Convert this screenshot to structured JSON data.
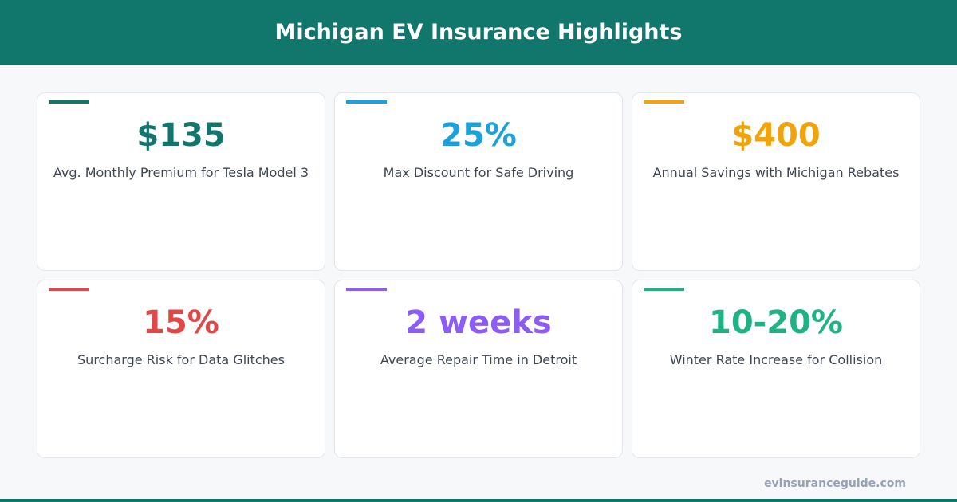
{
  "header": {
    "title": "Michigan EV Insurance Highlights"
  },
  "cards": [
    {
      "value": "$135",
      "label": "Avg. Monthly Premium for Tesla Model 3",
      "color": "#13756b"
    },
    {
      "value": "25%",
      "label": "Max Discount for Safe Driving",
      "color": "#1ba1dc"
    },
    {
      "value": "$400",
      "label": "Annual Savings with Michigan Rebates",
      "color": "#f0a30a"
    },
    {
      "value": "15%",
      "label": "Surcharge Risk for Data Glitches",
      "color": "#e04848"
    },
    {
      "value": "2 weeks",
      "label": "Average Repair Time in Detroit",
      "color": "#8b5cf6"
    },
    {
      "value": "10-20%",
      "label": "Winter Rate Increase for Collision",
      "color": "#1fb283"
    }
  ],
  "footer": {
    "site": "evinsuranceguide.com"
  }
}
